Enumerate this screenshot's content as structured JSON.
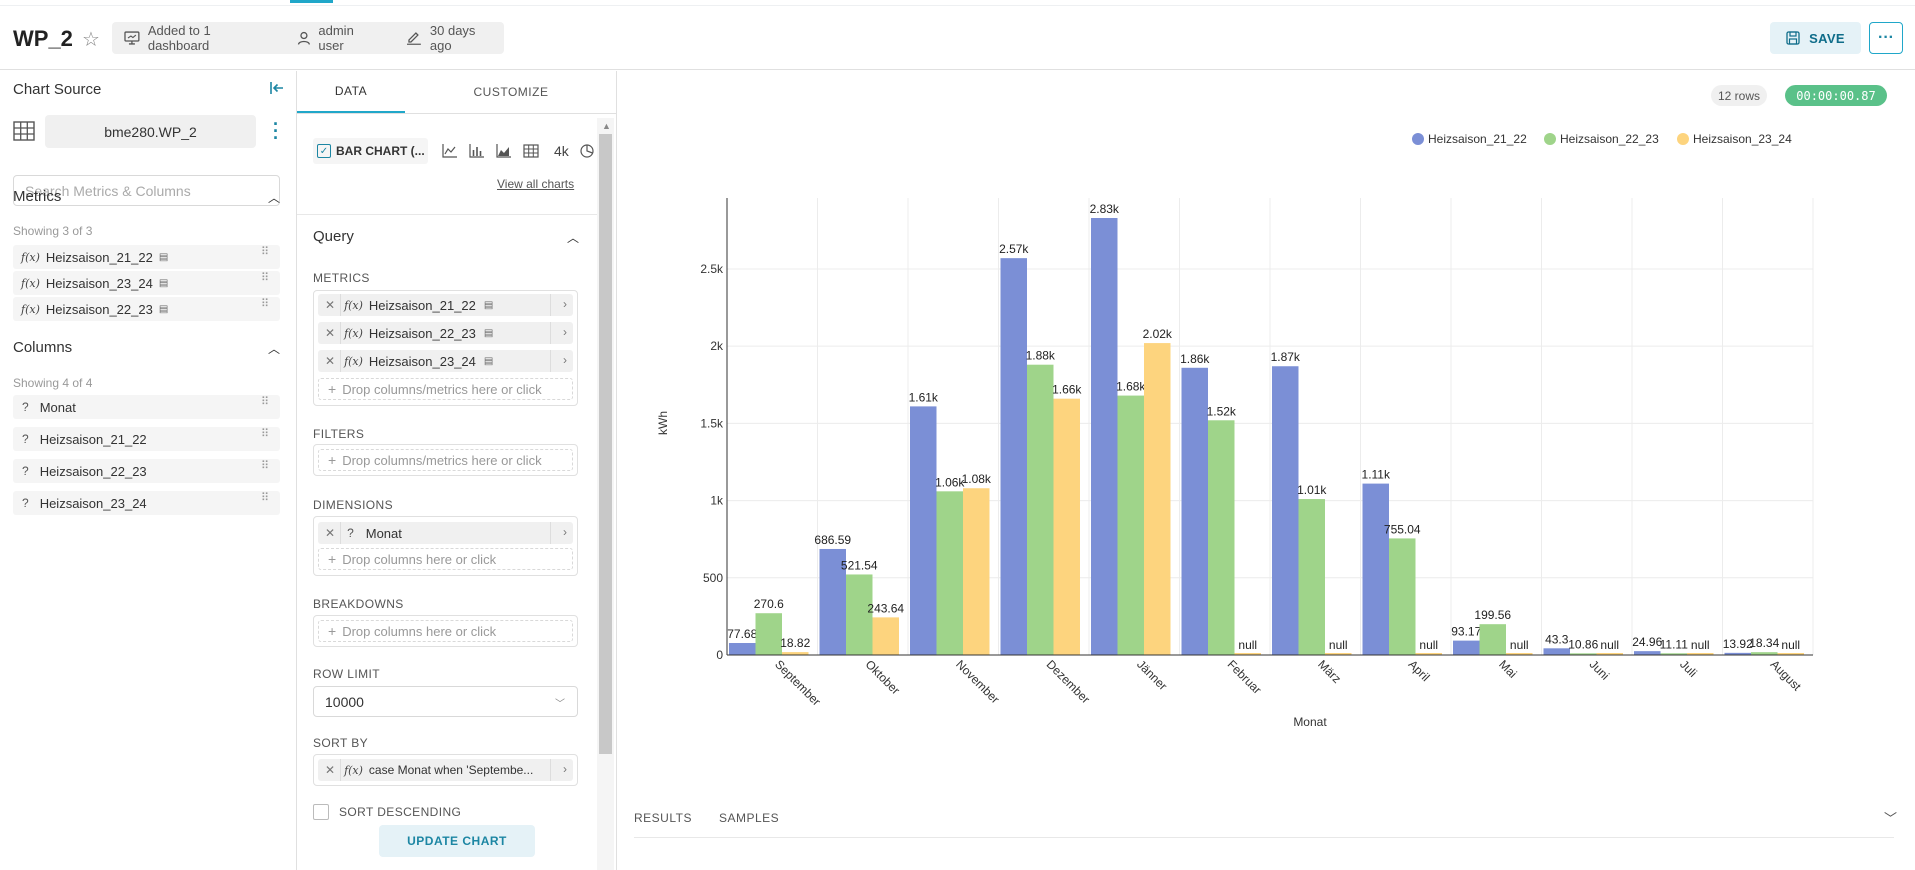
{
  "header": {
    "title": "WP_2",
    "dashboard_info": "Added to 1 dashboard",
    "owner": "admin user",
    "modified": "30 days ago",
    "save_label": "SAVE",
    "more_label": "···"
  },
  "left": {
    "chart_source_label": "Chart Source",
    "dataset_name": "bme280.WP_2",
    "search_placeholder": "Search Metrics & Columns",
    "metrics_title": "Metrics",
    "metrics_showing": "Showing 3 of 3",
    "metrics": [
      "Heizsaison_21_22",
      "Heizsaison_23_24",
      "Heizsaison_22_23"
    ],
    "columns_title": "Columns",
    "columns_showing": "Showing 4 of 4",
    "columns": [
      "Monat",
      "Heizsaison_21_22",
      "Heizsaison_22_23",
      "Heizsaison_23_24"
    ]
  },
  "mid": {
    "tab_data": "DATA",
    "tab_customize": "CUSTOMIZE",
    "chart_type": "BAR CHART (...",
    "chart_type_4k": "4k",
    "view_all_charts": "View all charts",
    "query_title": "Query",
    "metrics_label": "METRICS",
    "metric_chips": [
      "Heizsaison_21_22",
      "Heizsaison_22_23",
      "Heizsaison_23_24"
    ],
    "drop_metrics": "Drop columns/metrics here or click",
    "filters_label": "FILTERS",
    "drop_filters": "Drop columns/metrics here or click",
    "dimensions_label": "DIMENSIONS",
    "dimension_chip": "Monat",
    "drop_dimensions": "Drop columns here or click",
    "breakdowns_label": "BREAKDOWNS",
    "drop_breakdowns": "Drop columns here or click",
    "row_limit_label": "ROW LIMIT",
    "row_limit_value": "10000",
    "sort_by_label": "SORT BY",
    "sort_by_chip": "case Monat when 'Septembe...",
    "sort_descending_label": "SORT DESCENDING",
    "update_chart_label": "UPDATE CHART"
  },
  "right": {
    "rows_badge": "12 rows",
    "timer": "00:00:00.87",
    "results_tab": "RESULTS",
    "samples_tab": "SAMPLES"
  },
  "chart_data": {
    "type": "bar",
    "xlabel": "Monat",
    "ylabel": "kWh",
    "ylim": [
      0,
      2830
    ],
    "yticks": [
      0,
      500,
      1000,
      1500,
      2000,
      2500
    ],
    "ytick_labels": [
      "0",
      "500",
      "1k",
      "1.5k",
      "2k",
      "2.5k"
    ],
    "grid": true,
    "legend_position": "top-right",
    "categories": [
      "September",
      "Oktober",
      "November",
      "Dezember",
      "Jänner",
      "Februar",
      "März",
      "April",
      "Mai",
      "Juni",
      "Juli",
      "August"
    ],
    "series": [
      {
        "name": "Heizsaison_21_22",
        "color": "#7b8fd6",
        "values": [
          77.68,
          686.59,
          1610,
          2570,
          2830,
          1860,
          1870,
          1110,
          93.17,
          43.3,
          24.96,
          13.92
        ],
        "labels": [
          "77.68",
          "686.59",
          "1.61k",
          "2.57k",
          "2.83k",
          "1.86k",
          "1.87k",
          "1.11k",
          "93.17",
          "43.3",
          "24.96",
          "13.92"
        ]
      },
      {
        "name": "Heizsaison_22_23",
        "color": "#9fd48a",
        "values": [
          270.6,
          521.54,
          1060,
          1880,
          1680,
          1520,
          1010,
          755.04,
          199.56,
          10.86,
          11.11,
          18.34
        ],
        "labels": [
          "270.6",
          "521.54",
          "1.06k",
          "1.88k",
          "1.68k",
          "1.52k",
          "1.01k",
          "755.04",
          "199.56",
          "10.86",
          "11.11",
          "18.34"
        ]
      },
      {
        "name": "Heizsaison_23_24",
        "color": "#fdd47e",
        "values": [
          18.82,
          243.64,
          1080,
          1660,
          2020,
          null,
          null,
          null,
          null,
          null,
          null,
          null
        ],
        "labels": [
          "18.82",
          "243.64",
          "1.08k",
          "1.66k",
          "2.02k",
          "null",
          "null",
          "null",
          "null",
          "null",
          "null",
          "null"
        ]
      }
    ]
  }
}
